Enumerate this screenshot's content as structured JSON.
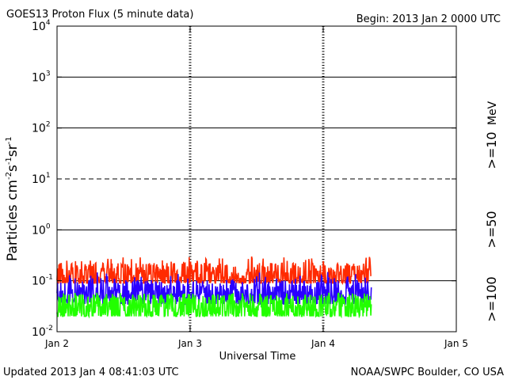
{
  "header": {
    "title": "GOES13 Proton Flux (5 minute data)",
    "begin": "Begin: 2013 Jan 2 0000 UTC"
  },
  "footer": {
    "updated": "Updated 2013 Jan  4 08:41:03 UTC",
    "credit": "NOAA/SWPC Boulder, CO USA"
  },
  "chart_data": {
    "type": "line",
    "title": "GOES13 Proton Flux (5 minute data)",
    "xlabel": "Universal Time",
    "ylabel": "Particles cm-2s-1sr-1",
    "yscale": "log",
    "ylim": [
      0.01,
      10000
    ],
    "xlim": [
      "Jan 2",
      "Jan 5"
    ],
    "x_ticks": [
      "Jan 2",
      "Jan 3",
      "Jan 4",
      "Jan 5"
    ],
    "y_ticks": [
      {
        "base": "10",
        "exp": "-2"
      },
      {
        "base": "10",
        "exp": "-1"
      },
      {
        "base": "10",
        "exp": "0"
      },
      {
        "base": "10",
        "exp": "1"
      },
      {
        "base": "10",
        "exp": "2"
      },
      {
        "base": "10",
        "exp": "3"
      },
      {
        "base": "10",
        "exp": "4"
      }
    ],
    "grid": "solid at decades, dashed at 10^1",
    "energy_unit": "MeV",
    "series": [
      {
        "name": ">=10",
        "color": "#ff2a00",
        "typical": 0.12,
        "min": 0.09,
        "max": 0.3
      },
      {
        "name": ">=50",
        "color": "#2a00ff",
        "typical": 0.055,
        "min": 0.035,
        "max": 0.15
      },
      {
        "name": ">=100",
        "color": "#22ff00",
        "typical": 0.03,
        "min": 0.02,
        "max": 0.06
      }
    ],
    "data_end": "Jan 4 08:40"
  }
}
